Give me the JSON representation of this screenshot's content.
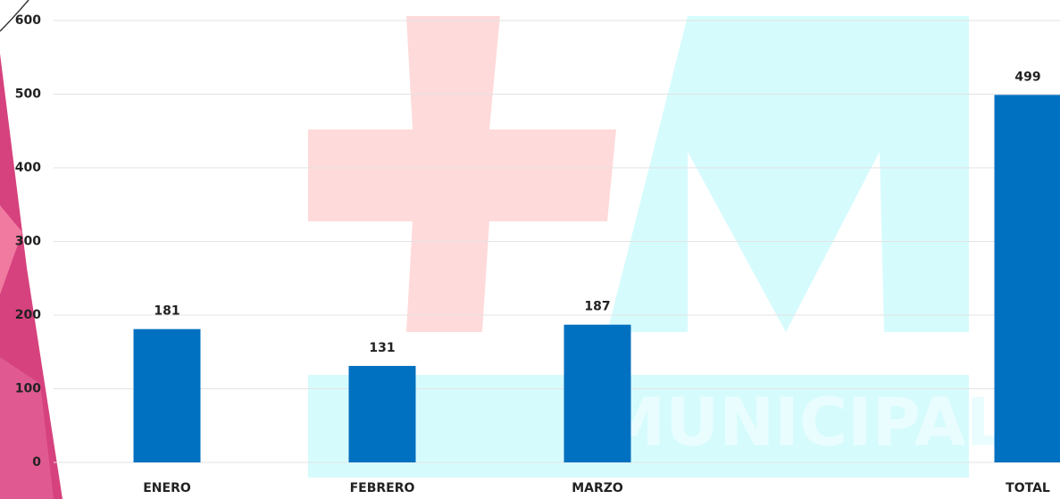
{
  "chart_data": {
    "type": "bar",
    "categories": [
      "ENERO",
      "FEBRERO",
      "MARZO",
      null,
      "TOTAL"
    ],
    "values": [
      181,
      131,
      187,
      null,
      499
    ],
    "color": "#0070c0",
    "ylim": [
      0,
      600
    ],
    "yticks": [
      0,
      100,
      200,
      300,
      400,
      500,
      600
    ],
    "grid": true,
    "watermark": "MUNICIPAL"
  }
}
